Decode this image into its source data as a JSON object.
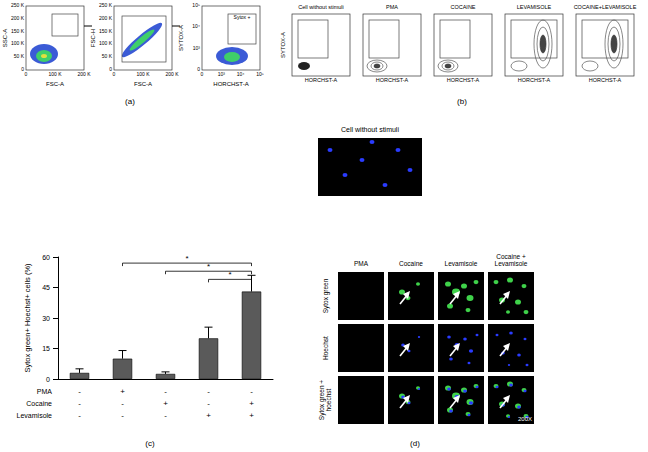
{
  "panels": {
    "a": {
      "label": "(a)",
      "plots": [
        {
          "y_label": "SSC-A",
          "x_label": "FSC-A",
          "yticks": [
            "0",
            "50 K",
            "100 K",
            "150 K",
            "200 K",
            "250 K"
          ],
          "xticks": [
            "0",
            "100 K",
            "200 K"
          ]
        },
        {
          "y_label": "FSC-H",
          "x_label": "FSC-A",
          "yticks": [
            "0",
            "50 K",
            "100 K",
            "150 K",
            "200 K",
            "250 K"
          ],
          "xticks": [
            "0",
            "100 K",
            "200 K"
          ]
        },
        {
          "y_label": "SYTOX-A",
          "x_label": "HORCHST-A",
          "yticks": [
            "0",
            "10³",
            "10⁴",
            "10⁵"
          ],
          "xticks": [
            "0",
            "10³",
            "10⁴",
            "10⁵"
          ],
          "gate": "Sytox +"
        }
      ]
    },
    "b": {
      "label": "(b)",
      "titles": [
        "Cell without stimuli",
        "PMA",
        "COCAINE",
        "LEVAMISOLE",
        "COCAINE+LEVAMISOLE"
      ],
      "y_label": "SYTOX-A",
      "x_label": "HORCHST-A"
    },
    "unstimulated": {
      "title": "Cell without stimuli"
    },
    "d": {
      "label": "(d)",
      "columns": [
        "PMA",
        "Cocaine",
        "Levamisole",
        "Cocaine + Levamisole"
      ],
      "rows": [
        "Sytox green",
        "Hoechst",
        "Sytox green + hoechst"
      ],
      "magnification": "200X"
    }
  },
  "chart_data": {
    "type": "bar",
    "label": "(c)",
    "categories": [
      null,
      null,
      null,
      null,
      null
    ],
    "values": [
      3,
      10,
      2.5,
      20,
      43
    ],
    "errors": [
      2,
      4,
      1,
      5.5,
      8
    ],
    "color": "#5a5a5a",
    "y_label": "Sytox green+ Hoechst+ cells (%)",
    "ylim": [
      0,
      60
    ],
    "yticks": [
      0,
      15,
      30,
      45,
      60
    ],
    "conditions": [
      {
        "name": "PMA",
        "marks": [
          "-",
          "+",
          "-",
          "-",
          "-"
        ]
      },
      {
        "name": "Cocaine",
        "marks": [
          "-",
          "-",
          "+",
          "-",
          "+"
        ]
      },
      {
        "name": "Levamisole",
        "marks": [
          "-",
          "-",
          "-",
          "+",
          "+"
        ]
      }
    ],
    "significance": [
      {
        "from": 1,
        "to": 4,
        "y": 57,
        "label": "*"
      },
      {
        "from": 2,
        "to": 4,
        "y": 53,
        "label": "*"
      },
      {
        "from": 3,
        "to": 4,
        "y": 49,
        "label": "*"
      }
    ]
  }
}
